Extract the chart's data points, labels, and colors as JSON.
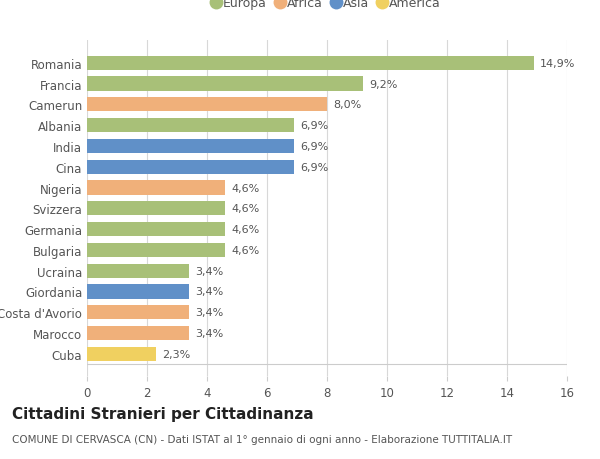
{
  "categories": [
    "Romania",
    "Francia",
    "Camerun",
    "Albania",
    "India",
    "Cina",
    "Nigeria",
    "Svizzera",
    "Germania",
    "Bulgaria",
    "Ucraina",
    "Giordania",
    "Costa d'Avorio",
    "Marocco",
    "Cuba"
  ],
  "values": [
    14.9,
    9.2,
    8.0,
    6.9,
    6.9,
    6.9,
    4.6,
    4.6,
    4.6,
    4.6,
    3.4,
    3.4,
    3.4,
    3.4,
    2.3
  ],
  "labels": [
    "14,9%",
    "9,2%",
    "8,0%",
    "6,9%",
    "6,9%",
    "6,9%",
    "4,6%",
    "4,6%",
    "4,6%",
    "4,6%",
    "3,4%",
    "3,4%",
    "3,4%",
    "3,4%",
    "2,3%"
  ],
  "continents": [
    "Europa",
    "Europa",
    "Africa",
    "Europa",
    "Asia",
    "Asia",
    "Africa",
    "Europa",
    "Europa",
    "Europa",
    "Europa",
    "Asia",
    "Africa",
    "Africa",
    "America"
  ],
  "colors": {
    "Europa": "#a8c078",
    "Africa": "#f0b07a",
    "Asia": "#6090c8",
    "America": "#f0d060"
  },
  "legend_order": [
    "Europa",
    "Africa",
    "Asia",
    "America"
  ],
  "xlim": [
    0,
    16
  ],
  "xticks": [
    0,
    2,
    4,
    6,
    8,
    10,
    12,
    14,
    16
  ],
  "title": "Cittadini Stranieri per Cittadinanza",
  "subtitle": "COMUNE DI CERVASCA (CN) - Dati ISTAT al 1° gennaio di ogni anno - Elaborazione TUTTITALIA.IT",
  "background_color": "#ffffff",
  "grid_color": "#d8d8d8",
  "bar_height": 0.68,
  "label_fontsize": 8.0,
  "ytick_fontsize": 8.5,
  "xtick_fontsize": 8.5,
  "title_fontsize": 11,
  "subtitle_fontsize": 7.5,
  "legend_fontsize": 9
}
